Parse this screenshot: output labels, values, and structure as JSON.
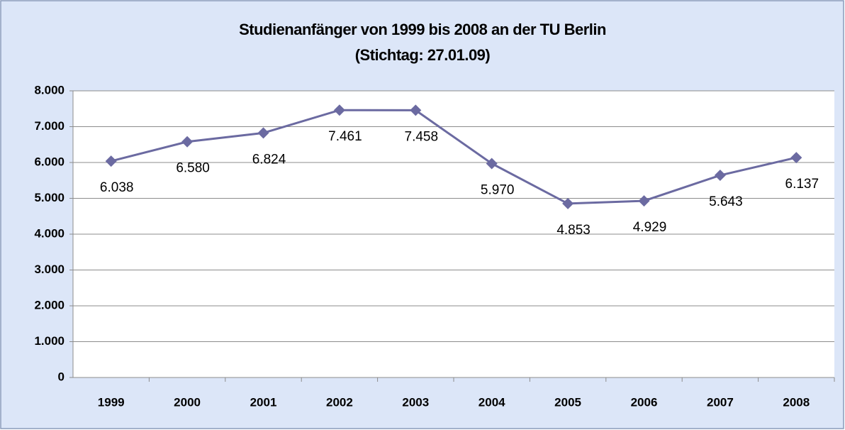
{
  "chart_data": {
    "type": "line",
    "title": "Studienanfänger von 1999 bis 2008 an der TU Berlin",
    "subtitle": "(Stichtag: 27.01.09)",
    "categories": [
      "1999",
      "2000",
      "2001",
      "2002",
      "2003",
      "2004",
      "2005",
      "2006",
      "2007",
      "2008"
    ],
    "series": [
      {
        "color": "#6b6aa1",
        "values": [
          6038,
          6580,
          6824,
          7461,
          7458,
          5970,
          4853,
          4929,
          5643,
          6137
        ],
        "value_labels": [
          "6.038",
          "6.580",
          "6.824",
          "7.461",
          "7.458",
          "5.970",
          "4.853",
          "4.929",
          "5.643",
          "6.137"
        ]
      }
    ],
    "ylim": [
      0,
      8000
    ],
    "yticks": [
      0,
      {
        "value": 1000,
        "label": "1.000"
      },
      {
        "value": 2000,
        "label": "2.000"
      },
      {
        "value": 3000,
        "label": "3.000"
      },
      {
        "value": 4000,
        "label": "4.000"
      },
      {
        "value": 5000,
        "label": "5.000"
      },
      {
        "value": 6000,
        "label": "6.000"
      },
      {
        "value": 7000,
        "label": "7.000"
      },
      {
        "value": 8000,
        "label": "8.000"
      }
    ],
    "grid": true
  }
}
